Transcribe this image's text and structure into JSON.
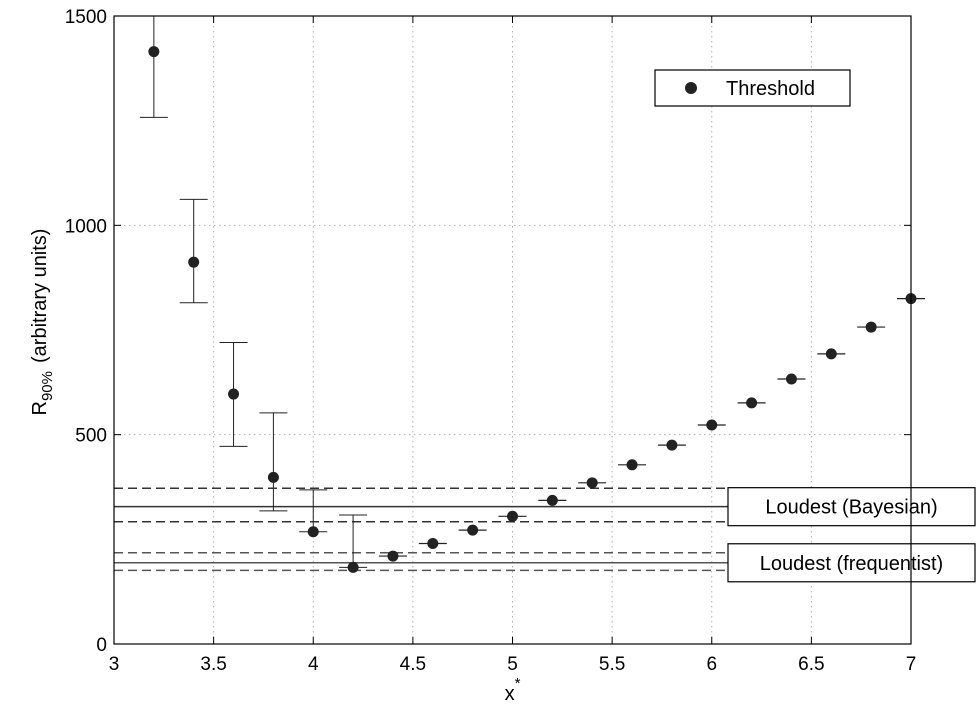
{
  "chart_data": {
    "type": "scatter",
    "xlabel": "x",
    "xlabel_sup": "*",
    "ylabel_main": "R",
    "ylabel_sub": "90%",
    "ylabel_rest": "(arbitrary units)",
    "xlim": [
      3,
      7
    ],
    "ylim": [
      0,
      1500
    ],
    "x_ticks": [
      3,
      3.5,
      4,
      4.5,
      5,
      5.5,
      6,
      6.5,
      7
    ],
    "x_tick_labels": [
      "3",
      "3.5",
      "4",
      "4.5",
      "5",
      "5.5",
      "6",
      "6.5",
      "7"
    ],
    "y_ticks": [
      0,
      500,
      1000,
      1500
    ],
    "y_tick_labels": [
      "0",
      "500",
      "1000",
      "1500"
    ],
    "grid": true,
    "legend_position": "top-right",
    "series": [
      {
        "name": "Threshold",
        "marker": "filled-circle",
        "color": "#222222",
        "points": [
          {
            "x": 3.2,
            "y": 1415,
            "lower": 1258,
            "upper": 1500
          },
          {
            "x": 3.4,
            "y": 912,
            "lower": 815,
            "upper": 1062
          },
          {
            "x": 3.6,
            "y": 597,
            "lower": 472,
            "upper": 720
          },
          {
            "x": 3.8,
            "y": 398,
            "lower": 318,
            "upper": 552
          },
          {
            "x": 4.0,
            "y": 268,
            "lower": 268,
            "upper": 368
          },
          {
            "x": 4.2,
            "y": 183,
            "lower": 183,
            "upper": 308
          },
          {
            "x": 4.4,
            "y": 210,
            "lower": 210,
            "upper": 210
          },
          {
            "x": 4.6,
            "y": 240,
            "lower": 240,
            "upper": 240
          },
          {
            "x": 4.8,
            "y": 272,
            "lower": 272,
            "upper": 272
          },
          {
            "x": 5.0,
            "y": 305,
            "lower": 305,
            "upper": 305
          },
          {
            "x": 5.2,
            "y": 343,
            "lower": 343,
            "upper": 343
          },
          {
            "x": 5.4,
            "y": 385,
            "lower": 385,
            "upper": 385
          },
          {
            "x": 5.6,
            "y": 428,
            "lower": 428,
            "upper": 428
          },
          {
            "x": 5.8,
            "y": 475,
            "lower": 475,
            "upper": 475
          },
          {
            "x": 6.0,
            "y": 523,
            "lower": 523,
            "upper": 523
          },
          {
            "x": 6.2,
            "y": 576,
            "lower": 576,
            "upper": 576
          },
          {
            "x": 6.4,
            "y": 633,
            "lower": 633,
            "upper": 633
          },
          {
            "x": 6.6,
            "y": 693,
            "lower": 693,
            "upper": 693
          },
          {
            "x": 6.8,
            "y": 757,
            "lower": 757,
            "upper": 757
          },
          {
            "x": 7.0,
            "y": 825,
            "lower": 825,
            "upper": 825
          }
        ]
      }
    ],
    "reference_lines": [
      {
        "label": "Loudest (Bayesian)",
        "y": 328,
        "lower": 292,
        "upper": 372,
        "color": "#333333"
      },
      {
        "label": "Loudest (frequentist)",
        "y": 194,
        "lower": 176,
        "upper": 218,
        "color": "#555555"
      }
    ]
  }
}
